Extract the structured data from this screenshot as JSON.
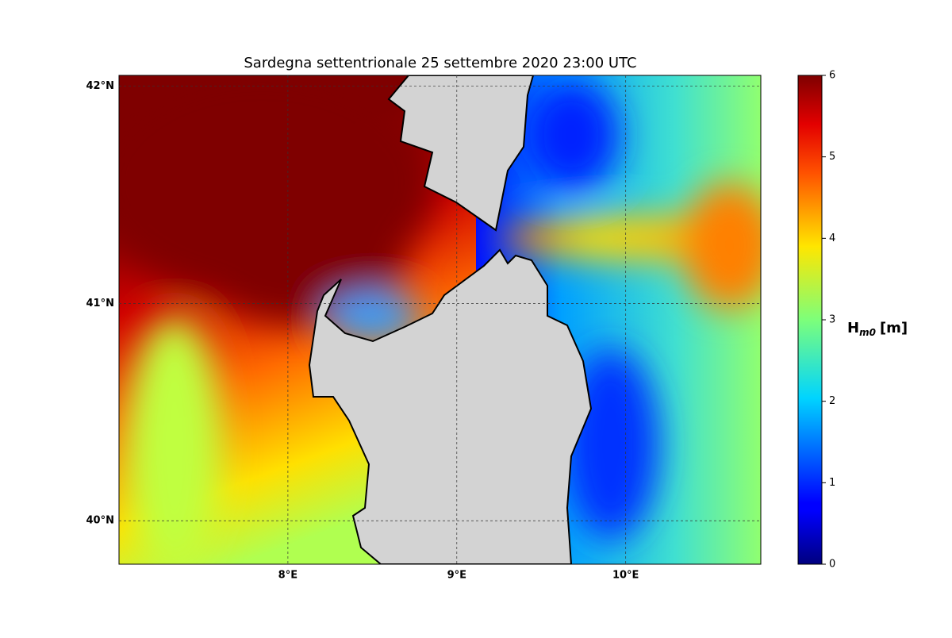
{
  "chart_data": {
    "type": "map",
    "title": "Sardegna settentrionale  25 settembre 2020  23:00 UTC",
    "xlim": [
      7.0,
      10.8
    ],
    "ylim": [
      39.8,
      42.05
    ],
    "xticks": [
      {
        "value": 8,
        "label": "8°E"
      },
      {
        "value": 9,
        "label": "9°E"
      },
      {
        "value": 10,
        "label": "10°E"
      }
    ],
    "yticks": [
      {
        "value": 40,
        "label": "40°N"
      },
      {
        "value": 41,
        "label": "41°N"
      },
      {
        "value": 42,
        "label": "42°N"
      }
    ],
    "grid": true,
    "colorbar": {
      "label": {
        "base": "H",
        "subscript": "m0",
        "unit": "[m]"
      },
      "ylim": [
        0,
        6
      ],
      "yticks": [
        0,
        1,
        2,
        3,
        4,
        5,
        6
      ],
      "colormap": "jet"
    }
  }
}
